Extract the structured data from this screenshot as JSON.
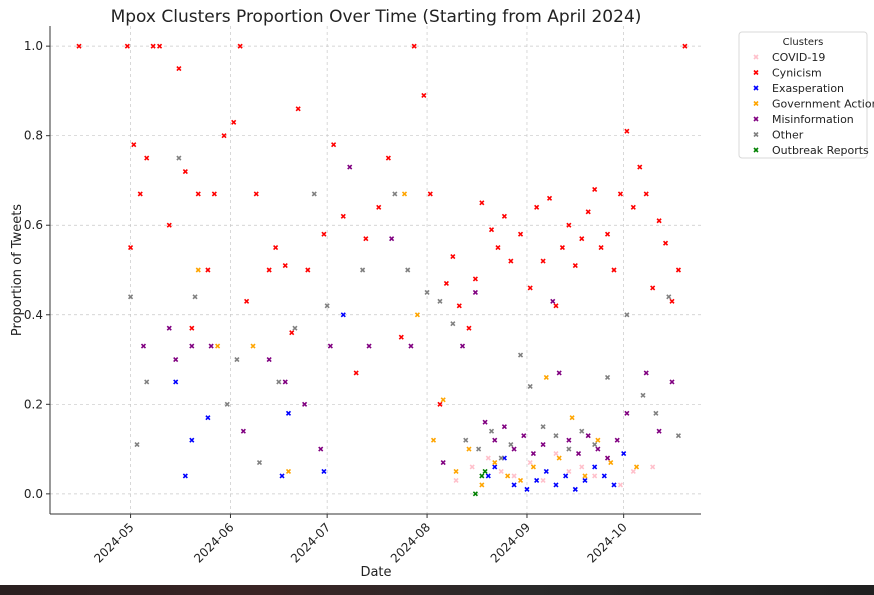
{
  "chart_data": {
    "type": "scatter",
    "title": "Mpox Clusters Proportion Over Time (Starting from April 2024)",
    "xlabel": "Date",
    "ylabel": "Proportion of Tweets",
    "x_range": [
      "2024-04-06",
      "2024-10-25"
    ],
    "ylim": [
      -0.045,
      1.045
    ],
    "x_ticks": [
      "2024-05",
      "2024-06",
      "2024-07",
      "2024-08",
      "2024-09",
      "2024-10"
    ],
    "y_ticks": [
      "0.0",
      "0.2",
      "0.4",
      "0.6",
      "0.8",
      "1.0"
    ],
    "grid": true,
    "legend": {
      "title": "Clusters",
      "placement": "upper-right-outside"
    },
    "series": [
      {
        "name": "COVID-19",
        "color": "#ffc0cb",
        "points": [
          [
            "2024-08-10",
            0.03
          ],
          [
            "2024-08-15",
            0.06
          ],
          [
            "2024-08-20",
            0.08
          ],
          [
            "2024-08-24",
            0.05
          ],
          [
            "2024-08-28",
            0.04
          ],
          [
            "2024-09-02",
            0.07
          ],
          [
            "2024-09-06",
            0.03
          ],
          [
            "2024-09-10",
            0.09
          ],
          [
            "2024-09-14",
            0.05
          ],
          [
            "2024-09-18",
            0.06
          ],
          [
            "2024-09-22",
            0.04
          ],
          [
            "2024-09-26",
            0.08
          ],
          [
            "2024-09-30",
            0.02
          ],
          [
            "2024-10-04",
            0.05
          ],
          [
            "2024-10-10",
            0.06
          ]
        ]
      },
      {
        "name": "Cynicism",
        "color": "#ff0000",
        "points": [
          [
            "2024-04-15",
            1.0
          ],
          [
            "2024-04-30",
            1.0
          ],
          [
            "2024-05-01",
            0.55
          ],
          [
            "2024-05-02",
            0.78
          ],
          [
            "2024-05-04",
            0.67
          ],
          [
            "2024-05-06",
            0.75
          ],
          [
            "2024-05-08",
            1.0
          ],
          [
            "2024-05-10",
            1.0
          ],
          [
            "2024-05-13",
            0.6
          ],
          [
            "2024-05-16",
            0.95
          ],
          [
            "2024-05-18",
            0.72
          ],
          [
            "2024-05-20",
            0.37
          ],
          [
            "2024-05-22",
            0.67
          ],
          [
            "2024-05-25",
            0.5
          ],
          [
            "2024-05-27",
            0.67
          ],
          [
            "2024-05-30",
            0.8
          ],
          [
            "2024-06-02",
            0.83
          ],
          [
            "2024-06-04",
            1.0
          ],
          [
            "2024-06-06",
            0.43
          ],
          [
            "2024-06-09",
            0.67
          ],
          [
            "2024-06-13",
            0.5
          ],
          [
            "2024-06-15",
            0.55
          ],
          [
            "2024-06-18",
            0.51
          ],
          [
            "2024-06-20",
            0.36
          ],
          [
            "2024-06-22",
            0.86
          ],
          [
            "2024-06-25",
            0.5
          ],
          [
            "2024-06-30",
            0.58
          ],
          [
            "2024-07-03",
            0.78
          ],
          [
            "2024-07-06",
            0.62
          ],
          [
            "2024-07-10",
            0.27
          ],
          [
            "2024-07-13",
            0.57
          ],
          [
            "2024-07-17",
            0.64
          ],
          [
            "2024-07-20",
            0.75
          ],
          [
            "2024-07-24",
            0.35
          ],
          [
            "2024-07-28",
            1.0
          ],
          [
            "2024-07-31",
            0.89
          ],
          [
            "2024-08-02",
            0.67
          ],
          [
            "2024-08-05",
            0.2
          ],
          [
            "2024-08-07",
            0.47
          ],
          [
            "2024-08-09",
            0.53
          ],
          [
            "2024-08-11",
            0.42
          ],
          [
            "2024-08-14",
            0.37
          ],
          [
            "2024-08-16",
            0.48
          ],
          [
            "2024-08-18",
            0.65
          ],
          [
            "2024-08-21",
            0.59
          ],
          [
            "2024-08-23",
            0.55
          ],
          [
            "2024-08-25",
            0.62
          ],
          [
            "2024-08-27",
            0.52
          ],
          [
            "2024-08-30",
            0.58
          ],
          [
            "2024-09-02",
            0.46
          ],
          [
            "2024-09-04",
            0.64
          ],
          [
            "2024-09-06",
            0.52
          ],
          [
            "2024-09-08",
            0.66
          ],
          [
            "2024-09-10",
            0.42
          ],
          [
            "2024-09-12",
            0.55
          ],
          [
            "2024-09-14",
            0.6
          ],
          [
            "2024-09-16",
            0.51
          ],
          [
            "2024-09-18",
            0.57
          ],
          [
            "2024-09-20",
            0.63
          ],
          [
            "2024-09-22",
            0.68
          ],
          [
            "2024-09-24",
            0.55
          ],
          [
            "2024-09-26",
            0.58
          ],
          [
            "2024-09-28",
            0.5
          ],
          [
            "2024-09-30",
            0.67
          ],
          [
            "2024-10-02",
            0.81
          ],
          [
            "2024-10-04",
            0.64
          ],
          [
            "2024-10-06",
            0.73
          ],
          [
            "2024-10-08",
            0.67
          ],
          [
            "2024-10-10",
            0.46
          ],
          [
            "2024-10-12",
            0.61
          ],
          [
            "2024-10-14",
            0.56
          ],
          [
            "2024-10-16",
            0.43
          ],
          [
            "2024-10-18",
            0.5
          ],
          [
            "2024-10-20",
            1.0
          ]
        ]
      },
      {
        "name": "Exasperation",
        "color": "#0000ff",
        "points": [
          [
            "2024-05-15",
            0.25
          ],
          [
            "2024-05-18",
            0.04
          ],
          [
            "2024-05-20",
            0.12
          ],
          [
            "2024-05-25",
            0.17
          ],
          [
            "2024-06-17",
            0.04
          ],
          [
            "2024-06-19",
            0.18
          ],
          [
            "2024-06-30",
            0.05
          ],
          [
            "2024-07-06",
            0.4
          ],
          [
            "2024-08-20",
            0.04
          ],
          [
            "2024-08-22",
            0.06
          ],
          [
            "2024-08-25",
            0.08
          ],
          [
            "2024-08-28",
            0.02
          ],
          [
            "2024-09-01",
            0.01
          ],
          [
            "2024-09-04",
            0.03
          ],
          [
            "2024-09-07",
            0.05
          ],
          [
            "2024-09-10",
            0.02
          ],
          [
            "2024-09-13",
            0.04
          ],
          [
            "2024-09-16",
            0.01
          ],
          [
            "2024-09-19",
            0.03
          ],
          [
            "2024-09-22",
            0.06
          ],
          [
            "2024-09-25",
            0.04
          ],
          [
            "2024-09-28",
            0.02
          ],
          [
            "2024-10-01",
            0.09
          ]
        ]
      },
      {
        "name": "Government Action",
        "color": "#ffa500",
        "points": [
          [
            "2024-05-22",
            0.5
          ],
          [
            "2024-05-28",
            0.33
          ],
          [
            "2024-06-08",
            0.33
          ],
          [
            "2024-06-19",
            0.05
          ],
          [
            "2024-07-25",
            0.67
          ],
          [
            "2024-07-29",
            0.4
          ],
          [
            "2024-08-03",
            0.12
          ],
          [
            "2024-08-06",
            0.21
          ],
          [
            "2024-08-10",
            0.05
          ],
          [
            "2024-08-14",
            0.1
          ],
          [
            "2024-08-18",
            0.02
          ],
          [
            "2024-08-22",
            0.07
          ],
          [
            "2024-08-26",
            0.04
          ],
          [
            "2024-08-30",
            0.03
          ],
          [
            "2024-09-03",
            0.06
          ],
          [
            "2024-09-07",
            0.26
          ],
          [
            "2024-09-11",
            0.08
          ],
          [
            "2024-09-15",
            0.17
          ],
          [
            "2024-09-19",
            0.04
          ],
          [
            "2024-09-23",
            0.12
          ],
          [
            "2024-09-27",
            0.07
          ],
          [
            "2024-10-05",
            0.06
          ]
        ]
      },
      {
        "name": "Misinformation",
        "color": "#800080",
        "points": [
          [
            "2024-05-05",
            0.33
          ],
          [
            "2024-05-13",
            0.37
          ],
          [
            "2024-05-15",
            0.3
          ],
          [
            "2024-05-20",
            0.33
          ],
          [
            "2024-05-26",
            0.33
          ],
          [
            "2024-06-05",
            0.14
          ],
          [
            "2024-06-13",
            0.3
          ],
          [
            "2024-06-18",
            0.25
          ],
          [
            "2024-06-24",
            0.2
          ],
          [
            "2024-06-29",
            0.1
          ],
          [
            "2024-07-02",
            0.33
          ],
          [
            "2024-07-08",
            0.73
          ],
          [
            "2024-07-14",
            0.33
          ],
          [
            "2024-07-21",
            0.57
          ],
          [
            "2024-07-27",
            0.33
          ],
          [
            "2024-08-06",
            0.07
          ],
          [
            "2024-08-12",
            0.33
          ],
          [
            "2024-08-16",
            0.45
          ],
          [
            "2024-08-19",
            0.16
          ],
          [
            "2024-08-22",
            0.12
          ],
          [
            "2024-08-25",
            0.15
          ],
          [
            "2024-08-28",
            0.1
          ],
          [
            "2024-08-31",
            0.13
          ],
          [
            "2024-09-03",
            0.09
          ],
          [
            "2024-09-06",
            0.11
          ],
          [
            "2024-09-09",
            0.43
          ],
          [
            "2024-09-11",
            0.27
          ],
          [
            "2024-09-14",
            0.12
          ],
          [
            "2024-09-17",
            0.09
          ],
          [
            "2024-09-20",
            0.13
          ],
          [
            "2024-09-23",
            0.1
          ],
          [
            "2024-09-26",
            0.08
          ],
          [
            "2024-09-29",
            0.12
          ],
          [
            "2024-10-02",
            0.18
          ],
          [
            "2024-10-08",
            0.27
          ],
          [
            "2024-10-12",
            0.14
          ],
          [
            "2024-10-16",
            0.25
          ]
        ]
      },
      {
        "name": "Other",
        "color": "#808080",
        "points": [
          [
            "2024-05-01",
            0.44
          ],
          [
            "2024-05-03",
            0.11
          ],
          [
            "2024-05-06",
            0.25
          ],
          [
            "2024-05-16",
            0.75
          ],
          [
            "2024-05-21",
            0.44
          ],
          [
            "2024-05-31",
            0.2
          ],
          [
            "2024-06-03",
            0.3
          ],
          [
            "2024-06-10",
            0.07
          ],
          [
            "2024-06-16",
            0.25
          ],
          [
            "2024-06-21",
            0.37
          ],
          [
            "2024-06-27",
            0.67
          ],
          [
            "2024-07-01",
            0.42
          ],
          [
            "2024-07-12",
            0.5
          ],
          [
            "2024-07-22",
            0.67
          ],
          [
            "2024-07-26",
            0.5
          ],
          [
            "2024-08-01",
            0.45
          ],
          [
            "2024-08-05",
            0.43
          ],
          [
            "2024-08-09",
            0.38
          ],
          [
            "2024-08-13",
            0.12
          ],
          [
            "2024-08-17",
            0.1
          ],
          [
            "2024-08-21",
            0.14
          ],
          [
            "2024-08-24",
            0.08
          ],
          [
            "2024-08-27",
            0.11
          ],
          [
            "2024-08-30",
            0.31
          ],
          [
            "2024-09-02",
            0.24
          ],
          [
            "2024-09-06",
            0.15
          ],
          [
            "2024-09-10",
            0.13
          ],
          [
            "2024-09-14",
            0.1
          ],
          [
            "2024-09-18",
            0.14
          ],
          [
            "2024-09-22",
            0.11
          ],
          [
            "2024-09-26",
            0.26
          ],
          [
            "2024-10-02",
            0.4
          ],
          [
            "2024-10-07",
            0.22
          ],
          [
            "2024-10-11",
            0.18
          ],
          [
            "2024-10-15",
            0.44
          ],
          [
            "2024-10-18",
            0.13
          ]
        ]
      },
      {
        "name": "Outbreak Reports",
        "color": "#008000",
        "points": [
          [
            "2024-08-16",
            0.0
          ],
          [
            "2024-08-18",
            0.04
          ],
          [
            "2024-08-19",
            0.05
          ]
        ]
      }
    ]
  }
}
